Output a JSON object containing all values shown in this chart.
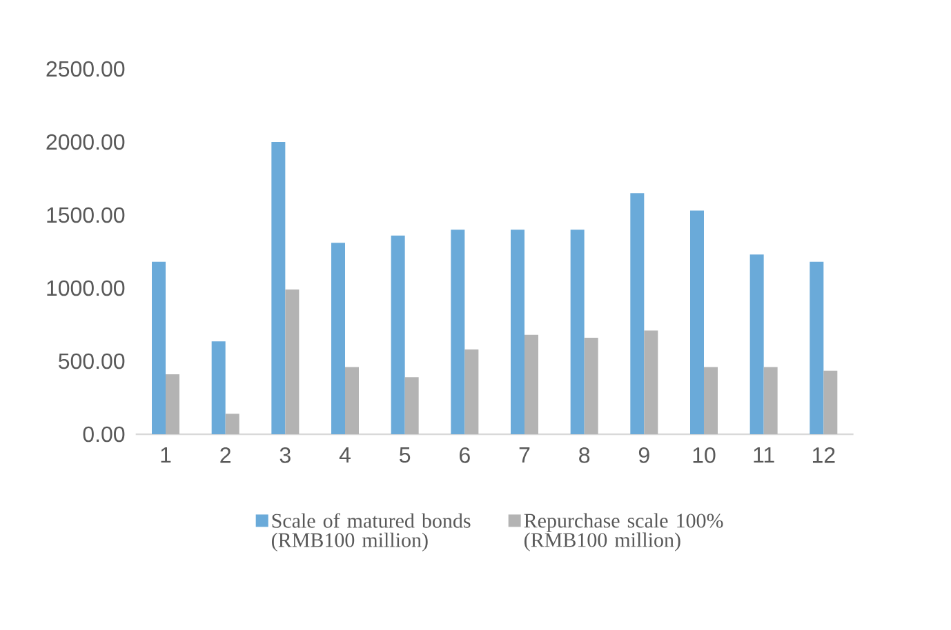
{
  "chart_data": {
    "type": "bar",
    "categories": [
      "1",
      "2",
      "3",
      "4",
      "5",
      "6",
      "7",
      "8",
      "9",
      "10",
      "11",
      "12"
    ],
    "series": [
      {
        "name": "Scale of matured bonds (RMB100 million)",
        "color": "#6aaad9",
        "values": [
          1180,
          635,
          2000,
          1310,
          1360,
          1400,
          1400,
          1400,
          1650,
          1530,
          1230,
          1180
        ]
      },
      {
        "name": "Repurchase scale 100% (RMB100 million)",
        "color": "#b3b3b3",
        "values": [
          410,
          140,
          990,
          460,
          390,
          580,
          680,
          660,
          710,
          460,
          460,
          435
        ]
      }
    ],
    "ylim": [
      0,
      2500
    ],
    "yticks": [
      {
        "value": 0,
        "label": "0.00"
      },
      {
        "value": 500,
        "label": "500.00"
      },
      {
        "value": 1000,
        "label": "1000.00"
      },
      {
        "value": 1500,
        "label": "1500.00"
      },
      {
        "value": 2000,
        "label": "2000.00"
      },
      {
        "value": 2500,
        "label": "2500.00"
      }
    ],
    "legend": "bottom"
  }
}
